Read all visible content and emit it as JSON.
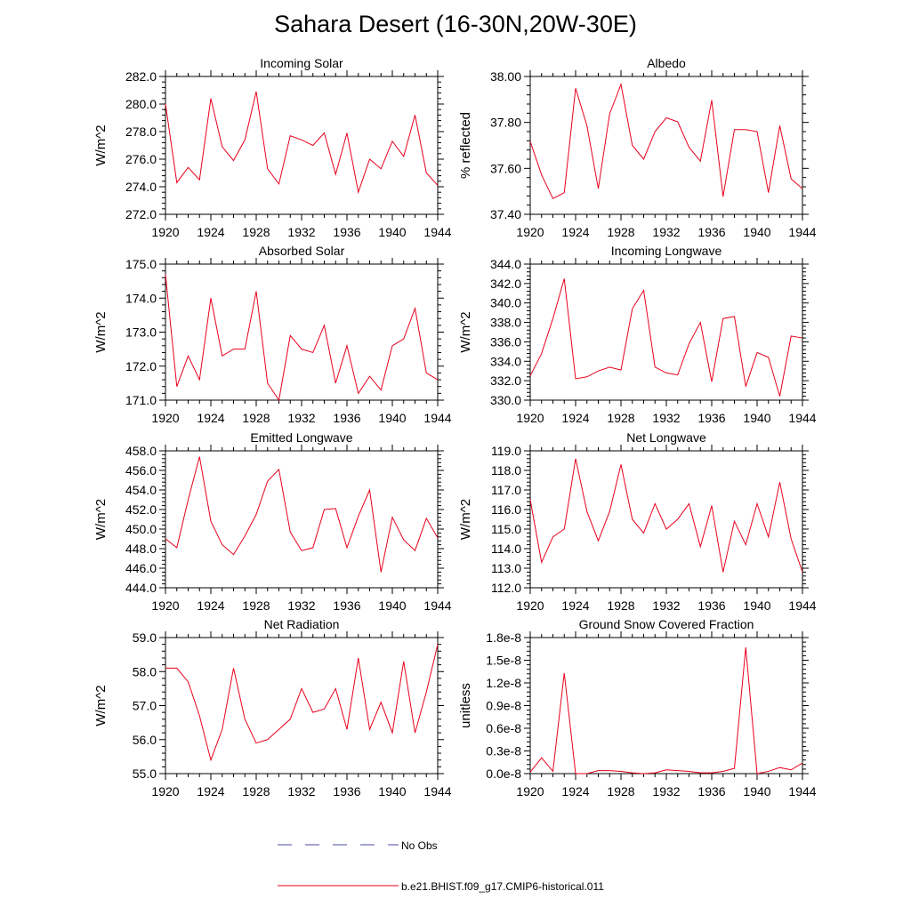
{
  "figure": {
    "title": "Sahara Desert (16-30N,20W-30E)",
    "legend": [
      {
        "label": "No Obs",
        "color": "#4a4aa8",
        "style": "dashed"
      },
      {
        "label": "b.e21.BHIST.f09_g17.CMIP6-historical.011",
        "color": "#e8001c",
        "style": "solid"
      }
    ]
  },
  "chart_data": [
    {
      "type": "line",
      "title": "Incoming Solar",
      "ylabel": "W/m^2",
      "xlim": [
        1920,
        1944
      ],
      "ylim": [
        272,
        282
      ],
      "xticks": [
        "1920",
        "1924",
        "1928",
        "1932",
        "1936",
        "1940",
        "1944"
      ],
      "yticks": [
        "272.0",
        "274.0",
        "276.0",
        "278.0",
        "280.0",
        "282.0"
      ],
      "x": [
        1920,
        1921,
        1922,
        1923,
        1924,
        1925,
        1926,
        1927,
        1928,
        1929,
        1930,
        1931,
        1932,
        1933,
        1934,
        1935,
        1936,
        1937,
        1938,
        1939,
        1940,
        1941,
        1942,
        1943,
        1944
      ],
      "series": [
        {
          "name": "b.e21.BHIST.f09_g17.CMIP6-historical.011",
          "color": "#e8001c",
          "values": [
            280.0,
            274.3,
            275.4,
            274.5,
            280.4,
            276.9,
            275.9,
            277.4,
            280.9,
            275.3,
            274.2,
            277.7,
            277.4,
            277.0,
            277.9,
            274.9,
            277.9,
            273.6,
            276.0,
            275.3,
            277.3,
            276.2,
            279.2,
            275.0,
            274.1
          ]
        }
      ]
    },
    {
      "type": "line",
      "title": "Albedo",
      "ylabel": "% reflected",
      "xlim": [
        1920,
        1944
      ],
      "ylim": [
        37.3,
        38.0
      ],
      "xticks": [
        "1920",
        "1924",
        "1928",
        "1932",
        "1936",
        "1940",
        "1944"
      ],
      "yticks": [
        "37.40",
        "37.60",
        "37.80",
        "38.00"
      ],
      "x": [
        1920,
        1921,
        1922,
        1923,
        1924,
        1925,
        1926,
        1927,
        1928,
        1929,
        1930,
        1931,
        1932,
        1933,
        1934,
        1935,
        1936,
        1937,
        1938,
        1939,
        1940,
        1941,
        1942,
        1943,
        1944
      ],
      "series": [
        {
          "name": "b.e21.BHIST.f09_g17.CMIP6-historical.011",
          "color": "#e8001c",
          "values": [
            37.67,
            37.5,
            37.38,
            37.41,
            37.94,
            37.75,
            37.43,
            37.81,
            37.96,
            37.65,
            37.58,
            37.72,
            37.79,
            37.77,
            37.64,
            37.57,
            37.88,
            37.39,
            37.73,
            37.73,
            37.72,
            37.41,
            37.75,
            37.48,
            37.43
          ]
        }
      ]
    },
    {
      "type": "line",
      "title": "Absorbed Solar",
      "ylabel": "W/m^2",
      "xlim": [
        1920,
        1944
      ],
      "ylim": [
        171,
        175
      ],
      "xticks": [
        "1920",
        "1924",
        "1928",
        "1932",
        "1936",
        "1940",
        "1944"
      ],
      "yticks": [
        "171.0",
        "172.0",
        "173.0",
        "174.0",
        "175.0"
      ],
      "x": [
        1920,
        1921,
        1922,
        1923,
        1924,
        1925,
        1926,
        1927,
        1928,
        1929,
        1930,
        1931,
        1932,
        1933,
        1934,
        1935,
        1936,
        1937,
        1938,
        1939,
        1940,
        1941,
        1942,
        1943,
        1944
      ],
      "series": [
        {
          "name": "b.e21.BHIST.f09_g17.CMIP6-historical.011",
          "color": "#e8001c",
          "values": [
            174.7,
            171.4,
            172.3,
            171.6,
            174.0,
            172.3,
            172.5,
            172.5,
            174.2,
            171.5,
            171.0,
            172.9,
            172.5,
            172.4,
            173.2,
            171.5,
            172.6,
            171.2,
            171.7,
            171.3,
            172.6,
            172.8,
            173.7,
            171.8,
            171.6
          ]
        }
      ]
    },
    {
      "type": "line",
      "title": "Incoming Longwave",
      "ylabel": "W/m^2",
      "xlim": [
        1920,
        1944
      ],
      "ylim": [
        330,
        344
      ],
      "xticks": [
        "1920",
        "1924",
        "1928",
        "1932",
        "1936",
        "1940",
        "1944"
      ],
      "yticks": [
        "330.0",
        "332.0",
        "334.0",
        "336.0",
        "338.0",
        "340.0",
        "342.0",
        "344.0"
      ],
      "x": [
        1920,
        1921,
        1922,
        1923,
        1924,
        1925,
        1926,
        1927,
        1928,
        1929,
        1930,
        1931,
        1932,
        1933,
        1934,
        1935,
        1936,
        1937,
        1938,
        1939,
        1940,
        1941,
        1942,
        1943,
        1944
      ],
      "series": [
        {
          "name": "b.e21.BHIST.f09_g17.CMIP6-historical.011",
          "color": "#e8001c",
          "values": [
            332.5,
            334.8,
            338.4,
            342.5,
            332.2,
            332.4,
            333.0,
            333.4,
            333.1,
            339.4,
            341.3,
            333.4,
            332.8,
            332.6,
            335.8,
            338.0,
            331.9,
            338.4,
            338.6,
            331.4,
            334.9,
            334.4,
            330.4,
            336.6,
            336.4
          ]
        }
      ]
    },
    {
      "type": "line",
      "title": "Emitted Longwave",
      "ylabel": "W/m^2",
      "xlim": [
        1920,
        1944
      ],
      "ylim": [
        444,
        458
      ],
      "xticks": [
        "1920",
        "1924",
        "1928",
        "1932",
        "1936",
        "1940",
        "1944"
      ],
      "yticks": [
        "444.0",
        "446.0",
        "448.0",
        "450.0",
        "452.0",
        "454.0",
        "456.0",
        "458.0"
      ],
      "x": [
        1920,
        1921,
        1922,
        1923,
        1924,
        1925,
        1926,
        1927,
        1928,
        1929,
        1930,
        1931,
        1932,
        1933,
        1934,
        1935,
        1936,
        1937,
        1938,
        1939,
        1940,
        1941,
        1942,
        1943,
        1944
      ],
      "series": [
        {
          "name": "b.e21.BHIST.f09_g17.CMIP6-historical.011",
          "color": "#e8001c",
          "values": [
            449.0,
            448.1,
            453.0,
            457.4,
            450.8,
            448.4,
            447.4,
            449.3,
            451.5,
            454.9,
            456.1,
            449.7,
            447.8,
            448.1,
            452.0,
            452.1,
            448.1,
            451.3,
            454.0,
            445.6,
            451.2,
            448.9,
            447.8,
            451.1,
            449.1
          ]
        }
      ]
    },
    {
      "type": "line",
      "title": "Net Longwave",
      "ylabel": "W/m^2",
      "xlim": [
        1920,
        1944
      ],
      "ylim": [
        112,
        119
      ],
      "xticks": [
        "1920",
        "1924",
        "1928",
        "1932",
        "1936",
        "1940",
        "1944"
      ],
      "yticks": [
        "112.0",
        "113.0",
        "114.0",
        "115.0",
        "116.0",
        "117.0",
        "118.0",
        "119.0"
      ],
      "x": [
        1920,
        1921,
        1922,
        1923,
        1924,
        1925,
        1926,
        1927,
        1928,
        1929,
        1930,
        1931,
        1932,
        1933,
        1934,
        1935,
        1936,
        1937,
        1938,
        1939,
        1940,
        1941,
        1942,
        1943,
        1944
      ],
      "series": [
        {
          "name": "b.e21.BHIST.f09_g17.CMIP6-historical.011",
          "color": "#e8001c",
          "values": [
            116.5,
            113.3,
            114.6,
            115.0,
            118.6,
            115.9,
            114.4,
            115.9,
            118.3,
            115.5,
            114.8,
            116.3,
            115.0,
            115.5,
            116.3,
            114.1,
            116.2,
            112.8,
            115.4,
            114.2,
            116.3,
            114.6,
            117.4,
            114.5,
            112.8
          ]
        }
      ]
    },
    {
      "type": "line",
      "title": "Net Radiation",
      "ylabel": "W/m^2",
      "xlim": [
        1920,
        1944
      ],
      "ylim": [
        55,
        59
      ],
      "xticks": [
        "1920",
        "1924",
        "1928",
        "1932",
        "1936",
        "1940",
        "1944"
      ],
      "yticks": [
        "55.0",
        "56.0",
        "57.0",
        "58.0",
        "59.0"
      ],
      "x": [
        1920,
        1921,
        1922,
        1923,
        1924,
        1925,
        1926,
        1927,
        1928,
        1929,
        1930,
        1931,
        1932,
        1933,
        1934,
        1935,
        1936,
        1937,
        1938,
        1939,
        1940,
        1941,
        1942,
        1943,
        1944
      ],
      "series": [
        {
          "name": "b.e21.BHIST.f09_g17.CMIP6-historical.011",
          "color": "#e8001c",
          "values": [
            58.1,
            58.1,
            57.7,
            56.7,
            55.4,
            56.3,
            58.1,
            56.6,
            55.9,
            56.0,
            56.3,
            56.6,
            57.5,
            56.8,
            56.9,
            57.5,
            56.3,
            58.4,
            56.3,
            57.1,
            56.2,
            58.3,
            56.2,
            57.4,
            58.8
          ]
        }
      ]
    },
    {
      "type": "line",
      "title": "Ground Snow Covered Fraction",
      "ylabel": "unitless",
      "xlim": [
        1920,
        1944
      ],
      "ylim": [
        0,
        1.8e-08
      ],
      "xticks": [
        "1920",
        "1924",
        "1928",
        "1932",
        "1936",
        "1940",
        "1944"
      ],
      "yticks": [
        "0.0e-8",
        "0.3e-8",
        "0.6e-8",
        "0.9e-8",
        "1.2e-8",
        "1.5e-8",
        "1.8e-8"
      ],
      "x": [
        1920,
        1921,
        1922,
        1923,
        1924,
        1925,
        1926,
        1927,
        1928,
        1929,
        1930,
        1931,
        1932,
        1933,
        1934,
        1935,
        1936,
        1937,
        1938,
        1939,
        1940,
        1941,
        1942,
        1943,
        1944
      ],
      "series": [
        {
          "name": "b.e21.BHIST.f09_g17.CMIP6-historical.011",
          "color": "#e8001c",
          "values": [
            2e-10,
            2.1e-09,
            3e-10,
            1.33e-08,
            0.0,
            0.0,
            4e-10,
            4e-10,
            3e-10,
            1e-10,
            0.0,
            1e-10,
            5e-10,
            4e-10,
            3e-10,
            1e-10,
            1e-10,
            3e-10,
            7e-10,
            1.67e-08,
            0.0,
            3e-10,
            8e-10,
            5e-10,
            1.4e-09
          ]
        }
      ]
    }
  ]
}
